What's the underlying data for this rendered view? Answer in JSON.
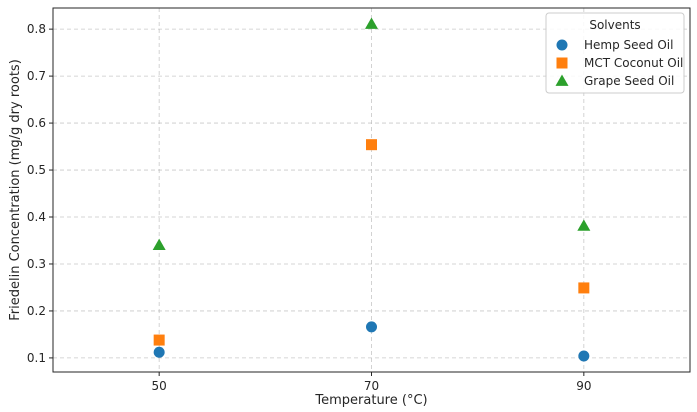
{
  "chart_data": {
    "type": "scatter",
    "title": "",
    "xlabel": "Temperature (°C)",
    "ylabel": "Friedelin Concentration (mg/g dry roots)",
    "x_ticks": [
      50,
      70,
      90
    ],
    "xlim": [
      40,
      100
    ],
    "y_ticks": [
      0.1,
      0.2,
      0.3,
      0.4,
      0.5,
      0.6,
      0.7,
      0.8
    ],
    "ylim": [
      0.07,
      0.845
    ],
    "grid": true,
    "legend": {
      "title": "Solvents",
      "placement": "top-right"
    },
    "series": [
      {
        "name": "Hemp Seed Oil",
        "marker": "circle",
        "color": "#1f77b4",
        "x": [
          50,
          70,
          90
        ],
        "y": [
          0.112,
          0.166,
          0.104
        ]
      },
      {
        "name": "MCT Coconut Oil",
        "marker": "square",
        "color": "#ff7f0e",
        "x": [
          50,
          70,
          90
        ],
        "y": [
          0.138,
          0.554,
          0.249
        ]
      },
      {
        "name": "Grape Seed Oil",
        "marker": "triangle",
        "color": "#2ca02c",
        "x": [
          50,
          70,
          90
        ],
        "y": [
          0.34,
          0.811,
          0.381
        ]
      }
    ]
  }
}
